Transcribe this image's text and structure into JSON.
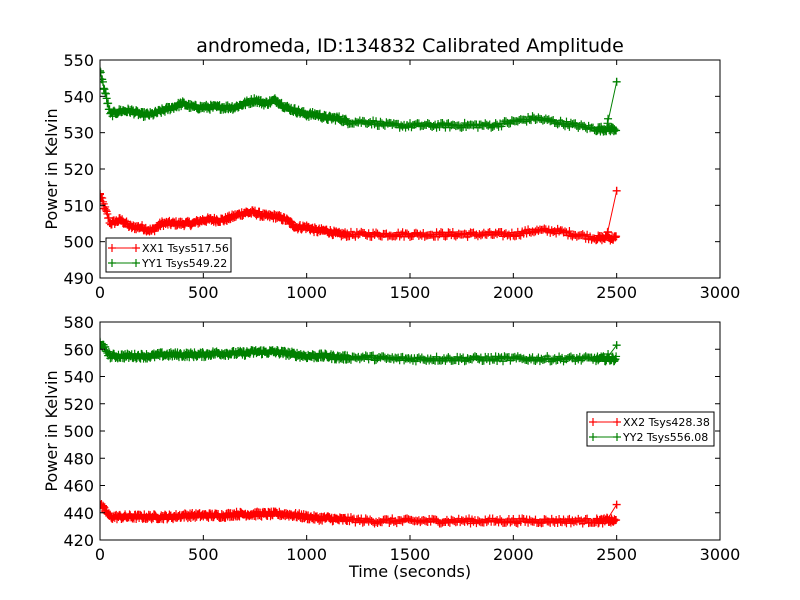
{
  "figure": {
    "title": "andromeda, ID:134832 Calibrated Amplitude",
    "background": "#ffffff"
  },
  "chart_data": [
    {
      "type": "scatter",
      "title": "andromeda, ID:134832 Calibrated Amplitude",
      "xlabel": "",
      "ylabel": "Power in Kelvin",
      "xlim": [
        0,
        3000
      ],
      "ylim": [
        490,
        550
      ],
      "xticks": [
        "0",
        "500",
        "1000",
        "1500",
        "2000",
        "2500",
        "3000"
      ],
      "yticks": [
        "490",
        "500",
        "510",
        "520",
        "530",
        "540",
        "550"
      ],
      "grid": false,
      "legend": "lower-left",
      "marker": "+",
      "series": [
        {
          "name": "XX1 Tsys517.56",
          "color": "#ff0000",
          "x": [
            0,
            50,
            100,
            150,
            200,
            250,
            300,
            350,
            400,
            450,
            500,
            550,
            600,
            650,
            700,
            750,
            800,
            850,
            900,
            950,
            1000,
            1050,
            1100,
            1150,
            1200,
            1300,
            1400,
            1500,
            1600,
            1700,
            1800,
            1900,
            2000,
            2100,
            2200,
            2300,
            2400,
            2450,
            2500
          ],
          "y": [
            513,
            505,
            506,
            504,
            504,
            503,
            505,
            505,
            505,
            505,
            506,
            506,
            506,
            507,
            508,
            508,
            507,
            507,
            506,
            504,
            504,
            503,
            503,
            502,
            502,
            502,
            502,
            502,
            502,
            502,
            502,
            502,
            502,
            503,
            503,
            502,
            501,
            501,
            514
          ]
        },
        {
          "name": "YY1 Tsys549.22",
          "color": "#008000",
          "x": [
            0,
            50,
            100,
            150,
            200,
            250,
            300,
            350,
            400,
            450,
            500,
            550,
            600,
            650,
            700,
            750,
            800,
            850,
            900,
            950,
            1000,
            1050,
            1100,
            1150,
            1200,
            1300,
            1400,
            1500,
            1600,
            1700,
            1800,
            1900,
            2000,
            2100,
            2200,
            2300,
            2400,
            2450,
            2500
          ],
          "y": [
            547,
            535,
            536,
            536,
            535,
            535,
            536,
            537,
            538,
            537,
            537,
            537,
            537,
            537,
            538,
            539,
            538,
            539,
            537,
            536,
            535,
            535,
            534,
            534,
            533,
            533,
            532,
            532,
            532,
            532,
            532,
            532,
            533,
            534,
            533,
            532,
            531,
            531,
            544
          ]
        }
      ]
    },
    {
      "type": "scatter",
      "title": "",
      "xlabel": "Time (seconds)",
      "ylabel": "Power in Kelvin",
      "xlim": [
        0,
        3000
      ],
      "ylim": [
        420,
        580
      ],
      "xticks": [
        "0",
        "500",
        "1000",
        "1500",
        "2000",
        "2500",
        "3000"
      ],
      "yticks": [
        "420",
        "440",
        "460",
        "480",
        "500",
        "520",
        "540",
        "560",
        "580"
      ],
      "grid": false,
      "legend": "center-right",
      "marker": "+",
      "series": [
        {
          "name": "XX2 Tsys428.38",
          "color": "#ff0000",
          "x": [
            0,
            50,
            100,
            150,
            200,
            250,
            300,
            350,
            400,
            450,
            500,
            550,
            600,
            650,
            700,
            750,
            800,
            850,
            900,
            950,
            1000,
            1050,
            1100,
            1150,
            1200,
            1300,
            1400,
            1500,
            1600,
            1700,
            1800,
            1900,
            2000,
            2100,
            2200,
            2300,
            2400,
            2450,
            2500
          ],
          "y": [
            446,
            437,
            437,
            437,
            437,
            437,
            437,
            437,
            438,
            438,
            438,
            438,
            438,
            439,
            439,
            439,
            439,
            439,
            439,
            438,
            437,
            436,
            436,
            435,
            435,
            434,
            434,
            434,
            434,
            434,
            434,
            434,
            434,
            434,
            434,
            434,
            434,
            434,
            446
          ]
        },
        {
          "name": "YY2 Tsys556.08",
          "color": "#008000",
          "x": [
            0,
            50,
            100,
            150,
            200,
            250,
            300,
            350,
            400,
            450,
            500,
            550,
            600,
            650,
            700,
            750,
            800,
            850,
            900,
            950,
            1000,
            1050,
            1100,
            1150,
            1200,
            1300,
            1400,
            1500,
            1600,
            1700,
            1800,
            1900,
            2000,
            2100,
            2200,
            2300,
            2400,
            2450,
            2500
          ],
          "y": [
            565,
            555,
            555,
            555,
            555,
            555,
            556,
            556,
            556,
            556,
            556,
            557,
            557,
            557,
            557,
            558,
            558,
            558,
            557,
            556,
            555,
            555,
            555,
            554,
            554,
            554,
            553,
            553,
            553,
            553,
            553,
            553,
            553,
            553,
            553,
            553,
            553,
            553,
            563
          ]
        }
      ]
    }
  ]
}
